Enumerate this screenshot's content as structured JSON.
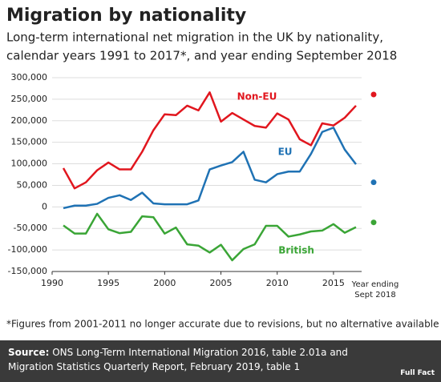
{
  "chart_data": {
    "type": "line",
    "title": "Migration by nationality",
    "subtitle": [
      "Long-term international net migration in the UK by nationality,",
      "calendar years 1991 to 2017*, and year ending September 2018"
    ],
    "x": [
      1991,
      1992,
      1993,
      1994,
      1995,
      1996,
      1997,
      1998,
      1999,
      2000,
      2001,
      2002,
      2003,
      2004,
      2005,
      2006,
      2007,
      2008,
      2009,
      2010,
      2011,
      2012,
      2013,
      2014,
      2015,
      2016,
      2017
    ],
    "series": [
      {
        "name": "Non-EU",
        "color": "#e1161e",
        "values": [
          90000,
          43000,
          57000,
          85000,
          103000,
          87000,
          87000,
          128000,
          178000,
          215000,
          213000,
          235000,
          224000,
          266000,
          198000,
          218000,
          203000,
          188000,
          184000,
          217000,
          203000,
          157000,
          143000,
          194000,
          189000,
          207000,
          235000
        ],
        "latest": 261000
      },
      {
        "name": "EU",
        "color": "#1f72b4",
        "values": [
          -3000,
          3000,
          3000,
          7000,
          21000,
          27000,
          16000,
          33000,
          8000,
          6000,
          6000,
          6000,
          15000,
          87000,
          96000,
          104000,
          128000,
          63000,
          57000,
          76000,
          82000,
          82000,
          123000,
          174000,
          184000,
          133000,
          99000
        ],
        "latest": 57000
      },
      {
        "name": "British",
        "color": "#3aa536",
        "values": [
          -43000,
          -62000,
          -62000,
          -16000,
          -52000,
          -61000,
          -58000,
          -22000,
          -24000,
          -62000,
          -48000,
          -87000,
          -90000,
          -106000,
          -88000,
          -124000,
          -98000,
          -87000,
          -44000,
          -44000,
          -69000,
          -64000,
          -57000,
          -55000,
          -40000,
          -60000,
          -47000
        ],
        "latest": -36000
      }
    ],
    "latest_label": [
      "Year ending",
      "Sept 2018"
    ],
    "xlim": [
      1990,
      2017.5
    ],
    "xticks": [
      1990,
      1995,
      2000,
      2005,
      2010,
      2015
    ],
    "ylim": [
      -150000,
      300000
    ],
    "yticks": [
      {
        "value": -150000,
        "label": "-150,000"
      },
      {
        "value": -100000,
        "label": "-100,000"
      },
      {
        "value": -50000,
        "label": "-50,000"
      },
      0,
      {
        "value": 50000,
        "label": "50,000"
      },
      {
        "value": 100000,
        "label": "100,000"
      },
      {
        "value": 150000,
        "label": "150,000"
      },
      {
        "value": 200000,
        "label": "200,000"
      },
      {
        "value": 250000,
        "label": "250,000"
      },
      {
        "value": 300000,
        "label": "300,000"
      }
    ],
    "grid": true,
    "footnote": "*Figures from 2001-2011 no longer accurate due to revisions, but no alternative available",
    "source_label": "Source:",
    "source": "ONS Long-Term International Migration 2016, table 2.01a and Migration Statistics Quarterly Report, February 2019, table 1",
    "logo": "Full Fact"
  }
}
